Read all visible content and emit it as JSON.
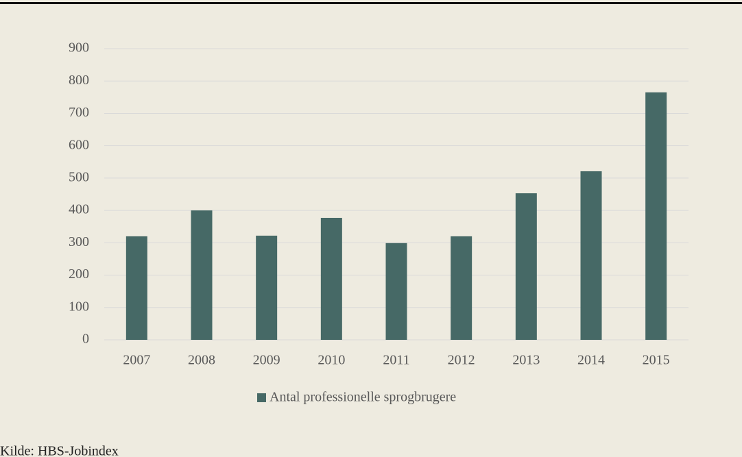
{
  "chart_data": {
    "type": "bar",
    "categories": [
      "2007",
      "2008",
      "2009",
      "2010",
      "2011",
      "2012",
      "2013",
      "2014",
      "2015"
    ],
    "series": [
      {
        "name": "Antal professionelle sprogbrugere",
        "color": "#466966",
        "values": [
          320,
          400,
          322,
          377,
          299,
          320,
          453,
          521,
          765
        ]
      }
    ],
    "ylim": [
      0,
      900
    ],
    "yticks": [
      0,
      100,
      200,
      300,
      400,
      500,
      600,
      700,
      800,
      900
    ],
    "grid": true,
    "legend": "bottom",
    "source": "Kilde: HBS-Jobindex"
  }
}
